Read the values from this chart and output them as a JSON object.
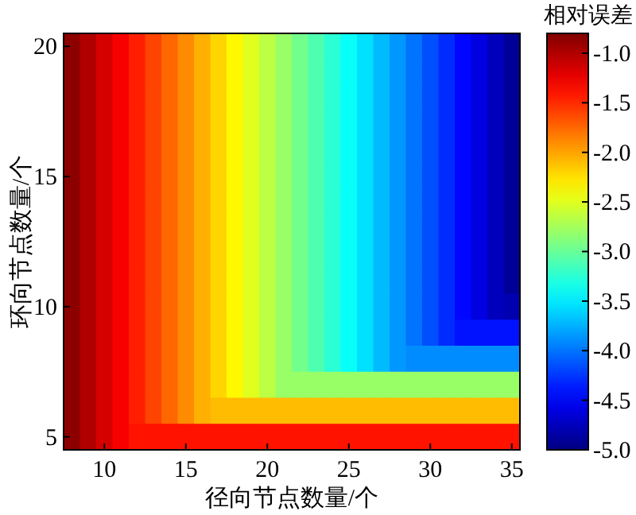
{
  "chart_data": {
    "type": "heatmap",
    "xlabel": "径向节点数量/个",
    "ylabel": "环向节点数量/个",
    "clabel": "相对误差",
    "categories": [
      null,
      null,
      "10",
      null,
      null,
      null,
      null,
      "15",
      null,
      null,
      null,
      null,
      "20",
      null,
      null,
      null,
      null,
      "25",
      null,
      null,
      null,
      null,
      "30",
      null,
      null,
      null,
      null,
      "35"
    ],
    "y_categories": [
      "20",
      null,
      null,
      null,
      null,
      "15",
      null,
      null,
      null,
      null,
      "10",
      null,
      null,
      null,
      null,
      "5"
    ],
    "clim": [
      -5,
      -0.8
    ],
    "cticks": [
      {
        "value": -1,
        "label": "-1.0"
      },
      {
        "value": -1.5,
        "label": "-1.5"
      },
      {
        "value": -2,
        "label": "-2.0"
      },
      {
        "value": -2.5,
        "label": "-2.5"
      },
      {
        "value": -3,
        "label": "-3.0"
      },
      {
        "value": -3.5,
        "label": "-3.5"
      },
      {
        "value": -4,
        "label": "-4.0"
      },
      {
        "value": -4.5,
        "label": "-4.5"
      },
      {
        "value": -5,
        "label": "-5.0"
      }
    ],
    "cells": [
      [
        -0.85,
        -1.0,
        -1.15,
        -1.3,
        -1.45,
        -1.6,
        -1.75,
        -1.9,
        -2.05,
        -2.2,
        -2.35,
        -2.5,
        -2.65,
        -2.8,
        -2.95,
        -3.1,
        -3.25,
        -3.4,
        -3.55,
        -3.7,
        -3.85,
        -4.0,
        -4.15,
        -4.3,
        -4.45,
        -4.6,
        -4.75,
        -4.9
      ],
      [
        -0.85,
        -1.0,
        -1.15,
        -1.3,
        -1.45,
        -1.6,
        -1.75,
        -1.9,
        -2.05,
        -2.2,
        -2.35,
        -2.5,
        -2.65,
        -2.8,
        -2.95,
        -3.1,
        -3.25,
        -3.4,
        -3.55,
        -3.7,
        -3.85,
        -4.0,
        -4.15,
        -4.3,
        -4.45,
        -4.6,
        -4.75,
        -4.9
      ],
      [
        -0.85,
        -1.0,
        -1.15,
        -1.3,
        -1.45,
        -1.6,
        -1.75,
        -1.9,
        -2.05,
        -2.2,
        -2.35,
        -2.5,
        -2.65,
        -2.8,
        -2.95,
        -3.1,
        -3.25,
        -3.4,
        -3.55,
        -3.7,
        -3.85,
        -4.0,
        -4.15,
        -4.3,
        -4.45,
        -4.6,
        -4.75,
        -4.9
      ],
      [
        -0.85,
        -1.0,
        -1.15,
        -1.3,
        -1.45,
        -1.6,
        -1.75,
        -1.9,
        -2.05,
        -2.2,
        -2.35,
        -2.5,
        -2.65,
        -2.8,
        -2.95,
        -3.1,
        -3.25,
        -3.4,
        -3.55,
        -3.7,
        -3.85,
        -4.0,
        -4.15,
        -4.3,
        -4.45,
        -4.6,
        -4.75,
        -4.9
      ],
      [
        -0.85,
        -1.0,
        -1.15,
        -1.3,
        -1.45,
        -1.6,
        -1.75,
        -1.9,
        -2.05,
        -2.2,
        -2.35,
        -2.5,
        -2.65,
        -2.8,
        -2.95,
        -3.1,
        -3.25,
        -3.4,
        -3.55,
        -3.7,
        -3.85,
        -4.0,
        -4.15,
        -4.3,
        -4.45,
        -4.6,
        -4.75,
        -4.9
      ],
      [
        -0.85,
        -1.0,
        -1.15,
        -1.3,
        -1.45,
        -1.6,
        -1.75,
        -1.9,
        -2.05,
        -2.2,
        -2.35,
        -2.5,
        -2.65,
        -2.8,
        -2.95,
        -3.1,
        -3.25,
        -3.4,
        -3.55,
        -3.7,
        -3.85,
        -4.0,
        -4.15,
        -4.3,
        -4.45,
        -4.6,
        -4.75,
        -4.9
      ],
      [
        -0.85,
        -1.0,
        -1.15,
        -1.3,
        -1.45,
        -1.6,
        -1.75,
        -1.9,
        -2.05,
        -2.2,
        -2.35,
        -2.5,
        -2.65,
        -2.8,
        -2.95,
        -3.1,
        -3.25,
        -3.4,
        -3.55,
        -3.7,
        -3.85,
        -4.0,
        -4.15,
        -4.3,
        -4.45,
        -4.6,
        -4.75,
        -4.9
      ],
      [
        -0.85,
        -1.0,
        -1.15,
        -1.3,
        -1.45,
        -1.6,
        -1.75,
        -1.9,
        -2.05,
        -2.2,
        -2.35,
        -2.5,
        -2.65,
        -2.8,
        -2.95,
        -3.1,
        -3.25,
        -3.4,
        -3.55,
        -3.7,
        -3.85,
        -4.0,
        -4.15,
        -4.3,
        -4.45,
        -4.6,
        -4.75,
        -4.9
      ],
      [
        -0.85,
        -1.0,
        -1.15,
        -1.3,
        -1.45,
        -1.6,
        -1.75,
        -1.9,
        -2.05,
        -2.2,
        -2.35,
        -2.5,
        -2.65,
        -2.8,
        -2.95,
        -3.1,
        -3.25,
        -3.4,
        -3.55,
        -3.7,
        -3.85,
        -4.0,
        -4.15,
        -4.3,
        -4.45,
        -4.6,
        -4.75,
        -4.9
      ],
      [
        -0.85,
        -1.0,
        -1.15,
        -1.3,
        -1.45,
        -1.6,
        -1.75,
        -1.9,
        -2.05,
        -2.2,
        -2.35,
        -2.5,
        -2.65,
        -2.8,
        -2.95,
        -3.1,
        -3.25,
        -3.4,
        -3.55,
        -3.7,
        -3.85,
        -4.0,
        -4.15,
        -4.3,
        -4.45,
        -4.6,
        -4.75,
        -4.9
      ],
      [
        -0.85,
        -1.0,
        -1.15,
        -1.3,
        -1.45,
        -1.6,
        -1.75,
        -1.9,
        -2.05,
        -2.2,
        -2.35,
        -2.5,
        -2.65,
        -2.8,
        -2.95,
        -3.1,
        -3.25,
        -3.4,
        -3.55,
        -3.7,
        -3.85,
        -4.0,
        -4.15,
        -4.3,
        -4.45,
        -4.6,
        -4.75,
        -4.8
      ],
      [
        -0.85,
        -1.0,
        -1.15,
        -1.3,
        -1.45,
        -1.6,
        -1.75,
        -1.9,
        -2.05,
        -2.2,
        -2.35,
        -2.5,
        -2.65,
        -2.8,
        -2.95,
        -3.1,
        -3.25,
        -3.4,
        -3.55,
        -3.7,
        -3.85,
        -4.0,
        -4.15,
        -4.3,
        -4.4,
        -4.4,
        -4.4,
        -4.4
      ],
      [
        -0.85,
        -1.0,
        -1.15,
        -1.3,
        -1.45,
        -1.6,
        -1.75,
        -1.9,
        -2.05,
        -2.2,
        -2.35,
        -2.5,
        -2.65,
        -2.8,
        -2.95,
        -3.1,
        -3.25,
        -3.4,
        -3.55,
        -3.7,
        -3.85,
        -3.9,
        -3.9,
        -3.9,
        -3.9,
        -3.9,
        -3.9,
        -3.9
      ],
      [
        -0.85,
        -1.0,
        -1.15,
        -1.3,
        -1.45,
        -1.6,
        -1.75,
        -1.9,
        -2.05,
        -2.2,
        -2.35,
        -2.5,
        -2.65,
        -2.8,
        -2.8,
        -2.8,
        -2.8,
        -2.8,
        -2.8,
        -2.8,
        -2.8,
        -2.8,
        -2.8,
        -2.8,
        -2.8,
        -2.8,
        -2.8,
        -2.8
      ],
      [
        -0.85,
        -1.0,
        -1.15,
        -1.3,
        -1.45,
        -1.6,
        -1.75,
        -1.9,
        -2.05,
        -2.1,
        -2.1,
        -2.1,
        -2.1,
        -2.1,
        -2.1,
        -2.1,
        -2.1,
        -2.1,
        -2.1,
        -2.1,
        -2.1,
        -2.1,
        -2.1,
        -2.1,
        -2.1,
        -2.1,
        -2.1,
        -2.1
      ],
      [
        -0.85,
        -1.0,
        -1.15,
        -1.3,
        -1.4,
        -1.4,
        -1.4,
        -1.4,
        -1.4,
        -1.4,
        -1.4,
        -1.4,
        -1.4,
        -1.4,
        -1.4,
        -1.4,
        -1.4,
        -1.4,
        -1.4,
        -1.4,
        -1.4,
        -1.4,
        -1.4,
        -1.4,
        -1.4,
        -1.4,
        -1.4,
        -1.4
      ]
    ]
  }
}
